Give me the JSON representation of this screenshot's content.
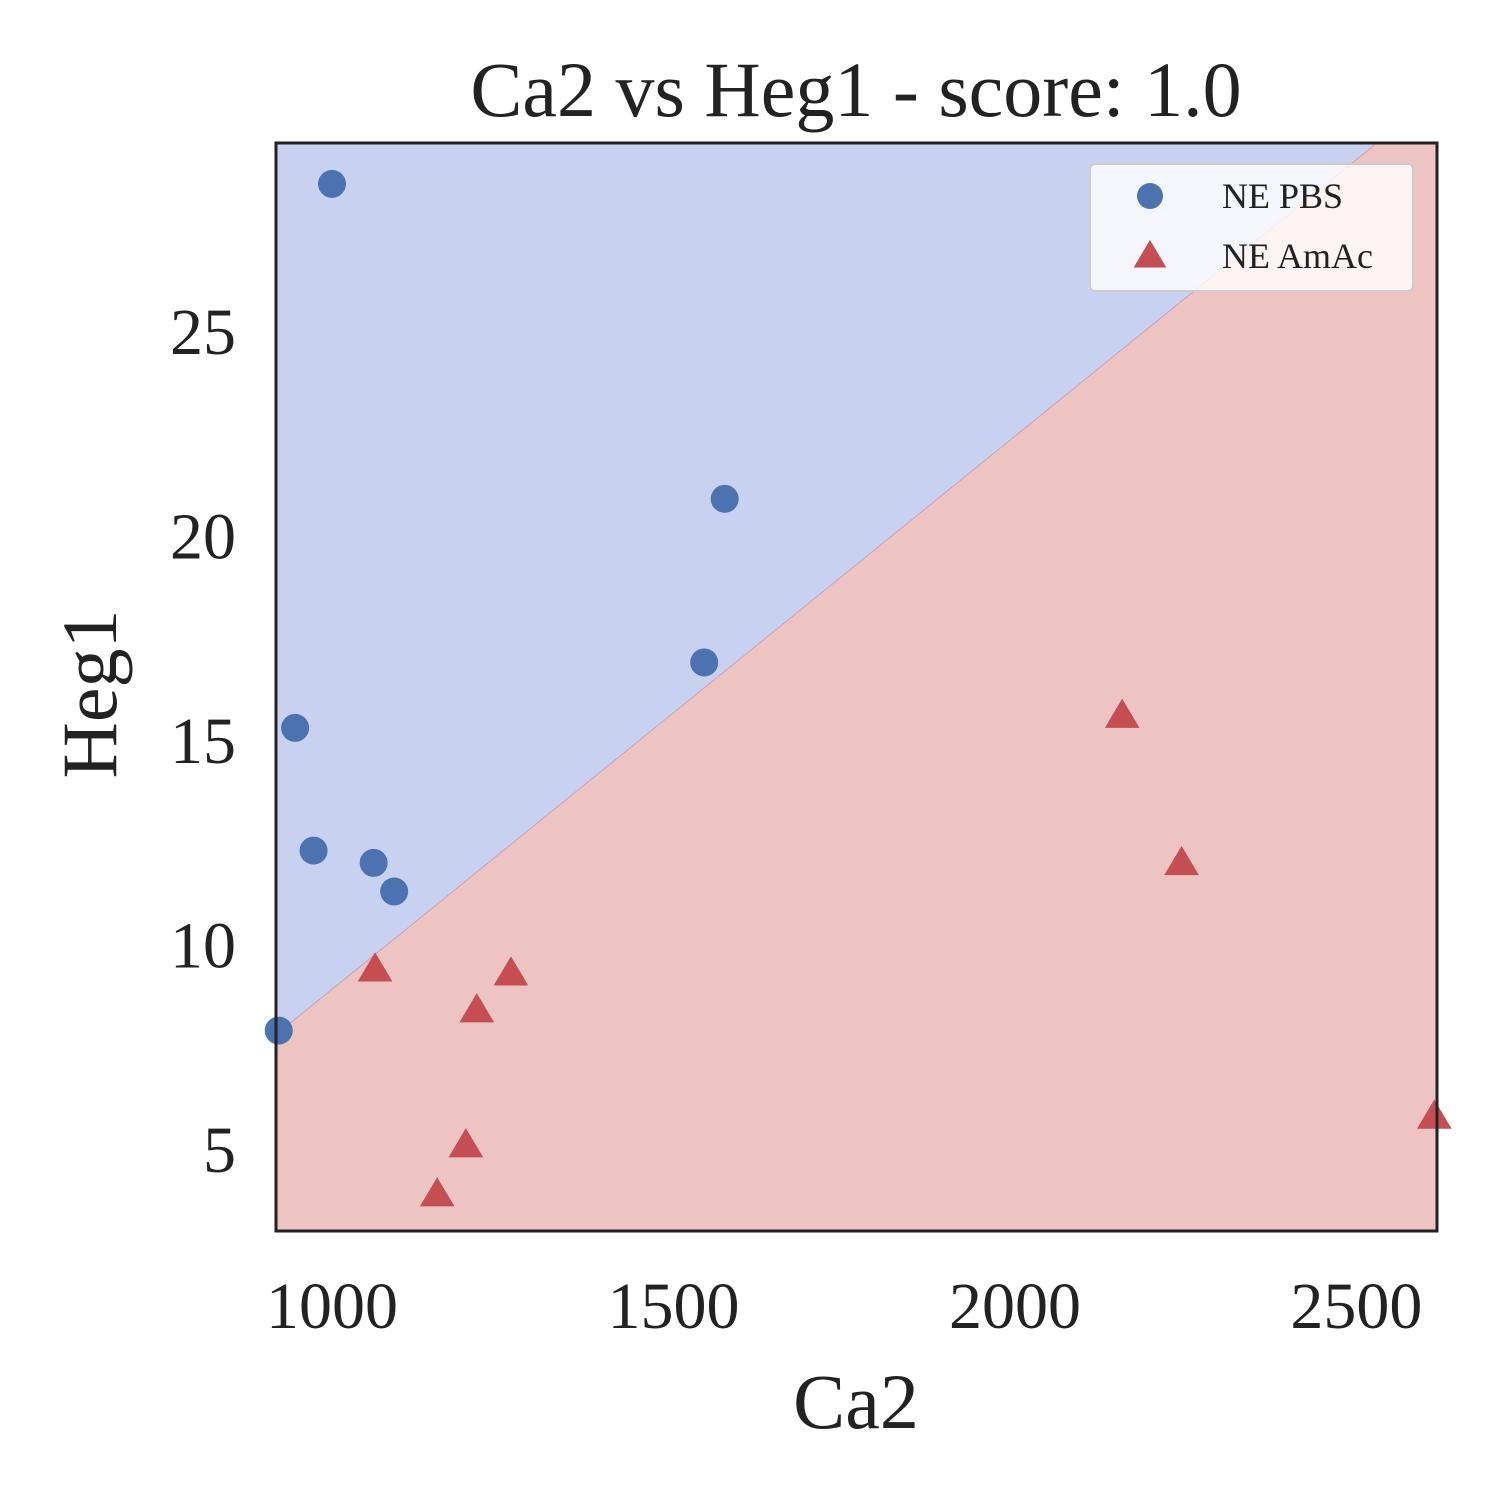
{
  "chart_data": {
    "type": "scatter",
    "title": "Ca2 vs Heg1 - score: 1.0",
    "xlabel": "Ca2",
    "ylabel": "Heg1",
    "xlim": [
      918,
      2618
    ],
    "ylim": [
      3.0,
      29.6
    ],
    "xticks": [
      1000,
      1500,
      2000,
      2500
    ],
    "yticks": [
      5,
      10,
      15,
      20,
      25
    ],
    "grid": false,
    "legend_position": "top-right",
    "decision_boundary": {
      "points": [
        [
          918,
          7.8
        ],
        [
          2530,
          29.6
        ]
      ],
      "upper_region_color": "#c9d1f1",
      "lower_region_color": "#eec4c3"
    },
    "series": [
      {
        "name": "NE PBS",
        "marker": "circle",
        "color": "#4c72b0",
        "points": [
          {
            "x": 1000,
            "y": 28.6
          },
          {
            "x": 946,
            "y": 15.3
          },
          {
            "x": 973,
            "y": 12.3
          },
          {
            "x": 1061,
            "y": 12.0
          },
          {
            "x": 1091,
            "y": 11.3
          },
          {
            "x": 922,
            "y": 7.9
          },
          {
            "x": 1545,
            "y": 16.9
          },
          {
            "x": 1575,
            "y": 20.9
          }
        ]
      },
      {
        "name": "NE AmAc",
        "marker": "triangle",
        "color": "#c44e52",
        "points": [
          {
            "x": 1063,
            "y": 9.4
          },
          {
            "x": 1212,
            "y": 8.4
          },
          {
            "x": 1262,
            "y": 9.3
          },
          {
            "x": 1196,
            "y": 5.1
          },
          {
            "x": 1154,
            "y": 3.9
          },
          {
            "x": 2157,
            "y": 15.6
          },
          {
            "x": 2244,
            "y": 12.0
          },
          {
            "x": 2614,
            "y": 5.8
          }
        ]
      }
    ]
  }
}
